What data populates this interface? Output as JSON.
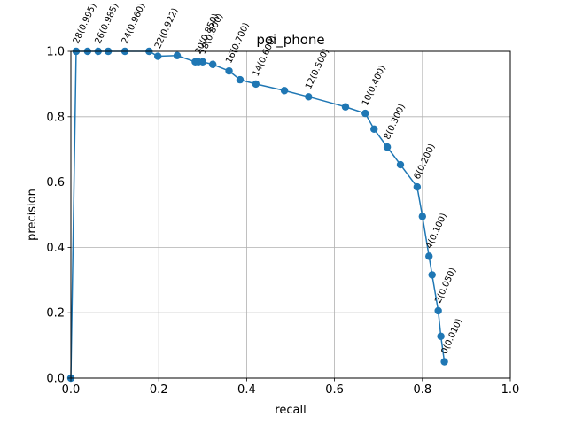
{
  "chart_data": {
    "type": "line",
    "title": "poi_phone",
    "xlabel": "recall",
    "ylabel": "precision",
    "xlim": [
      0.0,
      1.0
    ],
    "ylim": [
      0.0,
      1.0
    ],
    "xticks": [
      "0.0",
      "0.2",
      "0.4",
      "0.6",
      "0.8",
      "1.0"
    ],
    "yticks": [
      "0.0",
      "0.2",
      "0.4",
      "0.6",
      "0.8",
      "1.0"
    ],
    "grid": true,
    "line_color": "#1f77b4",
    "series": [
      {
        "x": [
          0.0,
          0.012,
          0.038,
          0.062,
          0.085,
          0.123,
          0.178,
          0.198,
          0.242,
          0.283,
          0.29,
          0.3,
          0.323,
          0.36,
          0.385,
          0.421,
          0.486,
          0.541,
          0.625,
          0.67,
          0.69,
          0.72,
          0.75,
          0.788,
          0.8,
          0.815,
          0.822,
          0.836,
          0.842,
          0.85
        ],
        "y": [
          0.0,
          1.0,
          1.0,
          1.0,
          1.0,
          1.0,
          1.0,
          0.985,
          0.987,
          0.968,
          0.968,
          0.968,
          0.96,
          0.94,
          0.913,
          0.9,
          0.88,
          0.861,
          0.83,
          0.81,
          0.762,
          0.707,
          0.653,
          0.585,
          0.495,
          0.373,
          0.316,
          0.206,
          0.128,
          0.05
        ]
      }
    ],
    "annotations": [
      {
        "text": "28(0.995)",
        "x": 0.012,
        "y": 1.0
      },
      {
        "text": "26(0.985)",
        "x": 0.062,
        "y": 1.0
      },
      {
        "text": "24(0.960)",
        "x": 0.123,
        "y": 1.0
      },
      {
        "text": "22(0.922)",
        "x": 0.198,
        "y": 0.985
      },
      {
        "text": "20(0.850)",
        "x": 0.29,
        "y": 0.968
      },
      {
        "text": "18(0.800)",
        "x": 0.3,
        "y": 0.968
      },
      {
        "text": "16(0.700)",
        "x": 0.36,
        "y": 0.94
      },
      {
        "text": "14(0.600)",
        "x": 0.421,
        "y": 0.9
      },
      {
        "text": "12(0.500)",
        "x": 0.541,
        "y": 0.861
      },
      {
        "text": "10(0.400)",
        "x": 0.67,
        "y": 0.81
      },
      {
        "text": "8(0.300)",
        "x": 0.72,
        "y": 0.707
      },
      {
        "text": "6(0.200)",
        "x": 0.788,
        "y": 0.585
      },
      {
        "text": "4(0.100)",
        "x": 0.815,
        "y": 0.373
      },
      {
        "text": "2(0.050)",
        "x": 0.836,
        "y": 0.206
      },
      {
        "text": "0(0.010)",
        "x": 0.85,
        "y": 0.05
      }
    ]
  }
}
